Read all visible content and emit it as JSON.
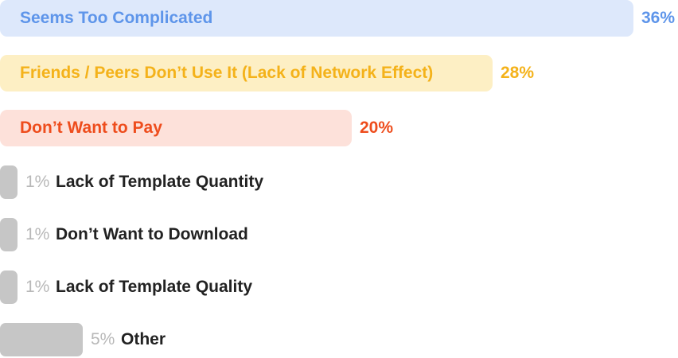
{
  "chart_data": {
    "type": "bar",
    "orientation": "horizontal",
    "categories": [
      "Seems Too Complicated",
      "Friends / Peers Don’t Use It (Lack of Network Effect)",
      "Don’t Want to Pay",
      "Lack of Template Quantity",
      "Don’t Want to Download",
      "Lack of Template Quality",
      "Other"
    ],
    "values": [
      36,
      28,
      20,
      1,
      1,
      1,
      5
    ],
    "value_labels": [
      "36%",
      "28%",
      "20%",
      "1%",
      "1%",
      "1%",
      "5%"
    ],
    "unit": "%",
    "xlim": [
      0,
      36
    ],
    "colors": {
      "bars": [
        "#dde8fb",
        "#fdefc4",
        "#fde1da",
        "#c6c6c6",
        "#c6c6c6",
        "#c6c6c6",
        "#c6c6c6"
      ],
      "text": [
        "#5e95ea",
        "#f4b21a",
        "#ee4d1d",
        "#222222",
        "#222222",
        "#222222",
        "#222222"
      ],
      "small_pct": "#b8b8b8"
    },
    "grid": false,
    "legend": "none"
  }
}
